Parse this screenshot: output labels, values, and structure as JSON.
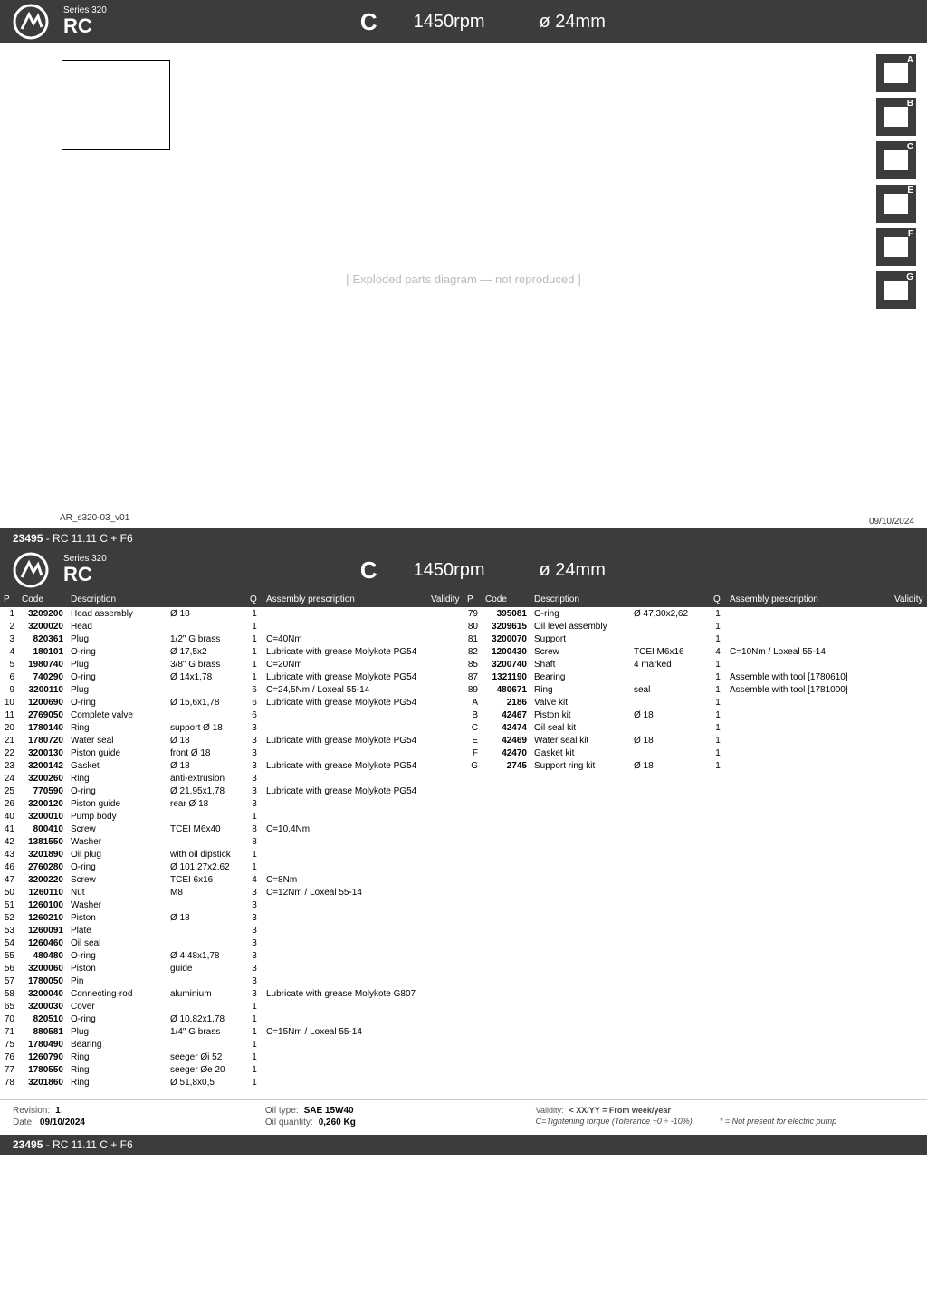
{
  "header": {
    "series_label": "Series 320",
    "model": "RC",
    "letter": "C",
    "rpm": "1450rpm",
    "diameter": "ø 24mm"
  },
  "diagram": {
    "ref_code": "AR_s320-03_v01",
    "date": "09/10/2024",
    "placeholder_text": "[ Exploded parts diagram — not reproduced ]"
  },
  "side_icons": [
    {
      "letter": "A"
    },
    {
      "letter": "B"
    },
    {
      "letter": "C"
    },
    {
      "letter": "E"
    },
    {
      "letter": "F"
    },
    {
      "letter": "G"
    }
  ],
  "allocation": {
    "code": "23495",
    "desc": "-  RC 11.11 C + F6"
  },
  "table_headers": {
    "p": "P",
    "code": "Code",
    "desc": "Description",
    "q": "Q",
    "ass": "Assembly prescription",
    "val": "Validity"
  },
  "parts_left": [
    {
      "p": "1",
      "code": "3209200",
      "desc": "Head assembly",
      "spec": "Ø 18",
      "q": "1",
      "ass": "",
      "val": ""
    },
    {
      "p": "2",
      "code": "3200020",
      "desc": "Head",
      "spec": "",
      "q": "1",
      "ass": "",
      "val": ""
    },
    {
      "p": "3",
      "code": "820361",
      "desc": "Plug",
      "spec": "1/2\" G brass",
      "q": "1",
      "ass": "C=40Nm",
      "val": ""
    },
    {
      "p": "4",
      "code": "180101",
      "desc": "O-ring",
      "spec": "Ø 17,5x2",
      "q": "1",
      "ass": "Lubricate with grease Molykote PG54",
      "val": ""
    },
    {
      "p": "5",
      "code": "1980740",
      "desc": "Plug",
      "spec": "3/8\" G brass",
      "q": "1",
      "ass": "C=20Nm",
      "val": ""
    },
    {
      "p": "6",
      "code": "740290",
      "desc": "O-ring",
      "spec": "Ø 14x1,78",
      "q": "1",
      "ass": "Lubricate with grease Molykote PG54",
      "val": ""
    },
    {
      "p": "9",
      "code": "3200110",
      "desc": "Plug",
      "spec": "",
      "q": "6",
      "ass": "C=24,5Nm / Loxeal 55-14",
      "val": ""
    },
    {
      "p": "10",
      "code": "1200690",
      "desc": "O-ring",
      "spec": "Ø 15,6x1,78",
      "q": "6",
      "ass": "Lubricate with grease Molykote PG54",
      "val": ""
    },
    {
      "p": "11",
      "code": "2769050",
      "desc": "Complete valve",
      "spec": "",
      "q": "6",
      "ass": "",
      "val": ""
    },
    {
      "p": "20",
      "code": "1780140",
      "desc": "Ring",
      "spec": "support Ø 18",
      "q": "3",
      "ass": "",
      "val": ""
    },
    {
      "p": "21",
      "code": "1780720",
      "desc": "Water seal",
      "spec": "Ø 18",
      "q": "3",
      "ass": "Lubricate with grease Molykote PG54",
      "val": ""
    },
    {
      "p": "22",
      "code": "3200130",
      "desc": "Piston guide",
      "spec": "front Ø 18",
      "q": "3",
      "ass": "",
      "val": ""
    },
    {
      "p": "23",
      "code": "3200142",
      "desc": "Gasket",
      "spec": "Ø 18",
      "q": "3",
      "ass": "Lubricate with grease Molykote PG54",
      "val": ""
    },
    {
      "p": "24",
      "code": "3200260",
      "desc": "Ring",
      "spec": "anti-extrusion",
      "q": "3",
      "ass": "",
      "val": ""
    },
    {
      "p": "25",
      "code": "770590",
      "desc": "O-ring",
      "spec": "Ø 21,95x1,78",
      "q": "3",
      "ass": "Lubricate with grease Molykote PG54",
      "val": ""
    },
    {
      "p": "26",
      "code": "3200120",
      "desc": "Piston guide",
      "spec": "rear Ø 18",
      "q": "3",
      "ass": "",
      "val": ""
    },
    {
      "p": "40",
      "code": "3200010",
      "desc": "Pump body",
      "spec": "",
      "q": "1",
      "ass": "",
      "val": ""
    },
    {
      "p": "41",
      "code": "800410",
      "desc": "Screw",
      "spec": "TCEI M6x40",
      "q": "8",
      "ass": "C=10,4Nm",
      "val": ""
    },
    {
      "p": "42",
      "code": "1381550",
      "desc": "Washer",
      "spec": "",
      "q": "8",
      "ass": "",
      "val": ""
    },
    {
      "p": "43",
      "code": "3201890",
      "desc": "Oil plug",
      "spec": "with oil dipstick",
      "q": "1",
      "ass": "",
      "val": ""
    },
    {
      "p": "46",
      "code": "2760280",
      "desc": "O-ring",
      "spec": "Ø 101,27x2,62",
      "q": "1",
      "ass": "",
      "val": ""
    },
    {
      "p": "47",
      "code": "3200220",
      "desc": "Screw",
      "spec": "TCEI 6x16",
      "q": "4",
      "ass": "C=8Nm",
      "val": ""
    },
    {
      "p": "50",
      "code": "1260110",
      "desc": "Nut",
      "spec": "M8",
      "q": "3",
      "ass": "C=12Nm / Loxeal 55-14",
      "val": ""
    },
    {
      "p": "51",
      "code": "1260100",
      "desc": "Washer",
      "spec": "",
      "q": "3",
      "ass": "",
      "val": ""
    },
    {
      "p": "52",
      "code": "1260210",
      "desc": "Piston",
      "spec": "Ø 18",
      "q": "3",
      "ass": "",
      "val": ""
    },
    {
      "p": "53",
      "code": "1260091",
      "desc": "Plate",
      "spec": "",
      "q": "3",
      "ass": "",
      "val": ""
    },
    {
      "p": "54",
      "code": "1260460",
      "desc": "Oil seal",
      "spec": "",
      "q": "3",
      "ass": "",
      "val": ""
    },
    {
      "p": "55",
      "code": "480480",
      "desc": "O-ring",
      "spec": "Ø 4,48x1,78",
      "q": "3",
      "ass": "",
      "val": ""
    },
    {
      "p": "56",
      "code": "3200060",
      "desc": "Piston",
      "spec": "guide",
      "q": "3",
      "ass": "",
      "val": ""
    },
    {
      "p": "57",
      "code": "1780050",
      "desc": "Pin",
      "spec": "",
      "q": "3",
      "ass": "",
      "val": ""
    },
    {
      "p": "58",
      "code": "3200040",
      "desc": "Connecting-rod",
      "spec": "aluminium",
      "q": "3",
      "ass": "Lubricate with grease Molykote G807",
      "val": ""
    },
    {
      "p": "65",
      "code": "3200030",
      "desc": "Cover",
      "spec": "",
      "q": "1",
      "ass": "",
      "val": ""
    },
    {
      "p": "70",
      "code": "820510",
      "desc": "O-ring",
      "spec": "Ø 10,82x1,78",
      "q": "1",
      "ass": "",
      "val": ""
    },
    {
      "p": "71",
      "code": "880581",
      "desc": "Plug",
      "spec": "1/4\" G brass",
      "q": "1",
      "ass": "C=15Nm / Loxeal 55-14",
      "val": ""
    },
    {
      "p": "75",
      "code": "1780490",
      "desc": "Bearing",
      "spec": "",
      "q": "1",
      "ass": "",
      "val": ""
    },
    {
      "p": "76",
      "code": "1260790",
      "desc": "Ring",
      "spec": "seeger Øi 52",
      "q": "1",
      "ass": "",
      "val": ""
    },
    {
      "p": "77",
      "code": "1780550",
      "desc": "Ring",
      "spec": "seeger Øe 20",
      "q": "1",
      "ass": "",
      "val": ""
    },
    {
      "p": "78",
      "code": "3201860",
      "desc": "Ring",
      "spec": "Ø 51,8x0,5",
      "q": "1",
      "ass": "",
      "val": ""
    }
  ],
  "parts_right": [
    {
      "p": "79",
      "code": "395081",
      "desc": "O-ring",
      "spec": "Ø 47,30x2,62",
      "q": "1",
      "ass": "",
      "val": ""
    },
    {
      "p": "80",
      "code": "3209615",
      "desc": "Oil level assembly",
      "spec": "",
      "q": "1",
      "ass": "",
      "val": ""
    },
    {
      "p": "81",
      "code": "3200070",
      "desc": "Support",
      "spec": "",
      "q": "1",
      "ass": "",
      "val": ""
    },
    {
      "p": "82",
      "code": "1200430",
      "desc": "Screw",
      "spec": "TCEI M6x16",
      "q": "4",
      "ass": "C=10Nm / Loxeal 55-14",
      "val": ""
    },
    {
      "p": "85",
      "code": "3200740",
      "desc": "Shaft",
      "spec": "4 marked",
      "q": "1",
      "ass": "",
      "val": ""
    },
    {
      "p": "87",
      "code": "1321190",
      "desc": "Bearing",
      "spec": "",
      "q": "1",
      "ass": "Assemble with tool [1780610]",
      "val": ""
    },
    {
      "p": "89",
      "code": "480671",
      "desc": "Ring",
      "spec": "seal",
      "q": "1",
      "ass": "Assemble with tool [1781000]",
      "val": ""
    },
    {
      "p": "A",
      "code": "2186",
      "desc": "Valve kit",
      "spec": "",
      "q": "1",
      "ass": "",
      "val": ""
    },
    {
      "p": "B",
      "code": "42467",
      "desc": "Piston kit",
      "spec": "Ø 18",
      "q": "1",
      "ass": "",
      "val": ""
    },
    {
      "p": "C",
      "code": "42474",
      "desc": "Oil seal kit",
      "spec": "",
      "q": "1",
      "ass": "",
      "val": ""
    },
    {
      "p": "E",
      "code": "42469",
      "desc": "Water seal kit",
      "spec": "Ø 18",
      "q": "1",
      "ass": "",
      "val": ""
    },
    {
      "p": "F",
      "code": "42470",
      "desc": "Gasket kit",
      "spec": "",
      "q": "1",
      "ass": "",
      "val": ""
    },
    {
      "p": "G",
      "code": "2745",
      "desc": "Support ring kit",
      "spec": "Ø 18",
      "q": "1",
      "ass": "",
      "val": ""
    }
  ],
  "footer": {
    "revision_label": "Revision:",
    "revision": "1",
    "date_label": "Date:",
    "date": "09/10/2024",
    "oiltype_label": "Oil type:",
    "oiltype": "SAE 15W40",
    "oilqty_label": "Oil quantity:",
    "oilqty": "0,260 Kg",
    "validity_label": "Validity:",
    "validity": "< XX/YY = From week/year",
    "note_torque": "C=Tightening torque (Tolerance +0 ÷ -10%)",
    "note_star": "* = Not present for electric pump"
  },
  "colors": {
    "bar": "#3c3c3c",
    "text_light": "#ffffff"
  }
}
